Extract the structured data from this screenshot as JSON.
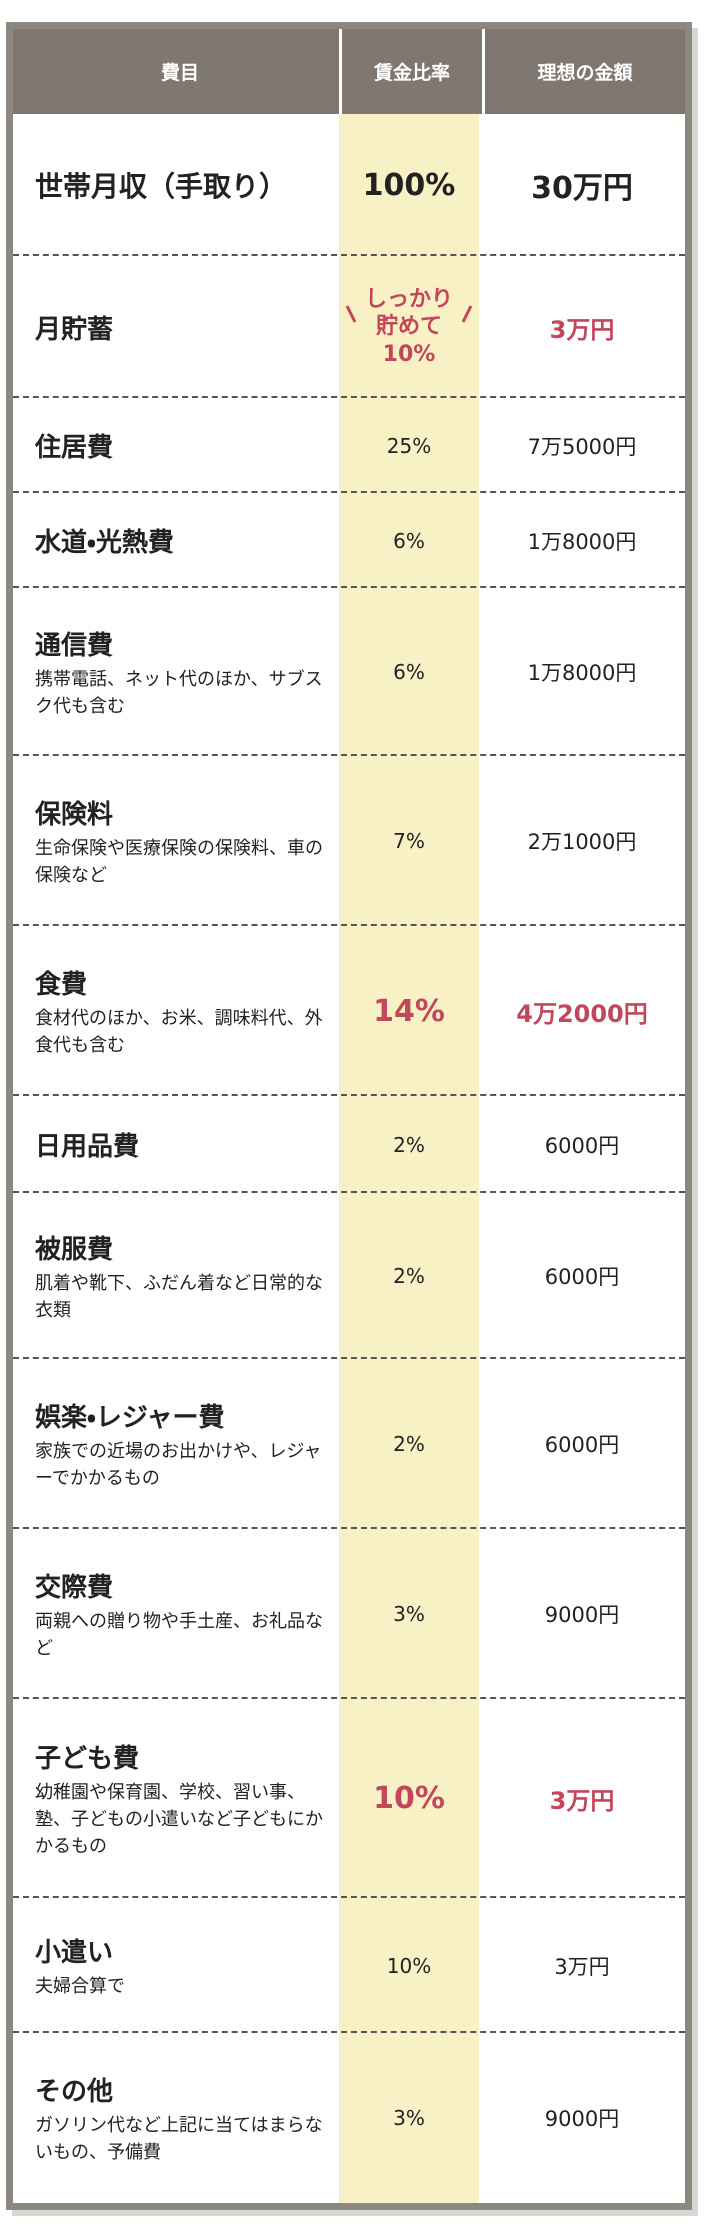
{
  "table": {
    "header": [
      "費目",
      "賃金比率",
      "理想の金額"
    ],
    "rows": [
      {
        "label": "世帯月収（手取り）",
        "ratio": "100%",
        "amount": "30万円"
      },
      {
        "label": "月貯蓄",
        "ratio_lines": [
          "しっかり",
          "貯めて",
          "10%"
        ],
        "amount": "3万円"
      },
      {
        "label": "住居費",
        "ratio": "25%",
        "amount": "7万5000円"
      },
      {
        "label": "水道・光熱費",
        "ratio": "6%",
        "amount": "1万8000円"
      },
      {
        "label": "通信費",
        "note": "携帯電話、ネット代のほか、サブスク代も含む",
        "ratio": "6%",
        "amount": "1万8000円"
      },
      {
        "label": "保険料",
        "note": "生命保険や医療保険の保険料、車の保険など",
        "ratio": "7%",
        "amount": "2万1000円"
      },
      {
        "label": "食費",
        "note": "食材代のほか、お米、調味料代、外食代も含む",
        "ratio": "14%",
        "amount": "4万2000円"
      },
      {
        "label": "日用品費",
        "ratio": "2%",
        "amount": "6000円"
      },
      {
        "label": "被服費",
        "note": "肌着や靴下、ふだん着など日常的な衣類",
        "ratio": "2%",
        "amount": "6000円"
      },
      {
        "label": "娯楽・レジャー費",
        "note": "家族での近場のお出かけや、レジャーでかかるもの",
        "ratio": "2%",
        "amount": "6000円"
      },
      {
        "label": "交際費",
        "note": "両親への贈り物や手土産、お礼品など",
        "ratio": "3%",
        "amount": "9000円"
      },
      {
        "label": "子ども費",
        "note": "幼稚園や保育園、学校、習い事、塾、子どもの小遣いなど子どもにかかるもの",
        "ratio": "10%",
        "amount": "3万円"
      },
      {
        "label": "小遣い",
        "note": "夫婦合算で",
        "ratio": "10%",
        "amount": "3万円"
      },
      {
        "label": "その他",
        "note": "ガソリン代など上記に当てはまらないもの、予備費",
        "ratio": "3%",
        "amount": "9000円"
      }
    ]
  }
}
